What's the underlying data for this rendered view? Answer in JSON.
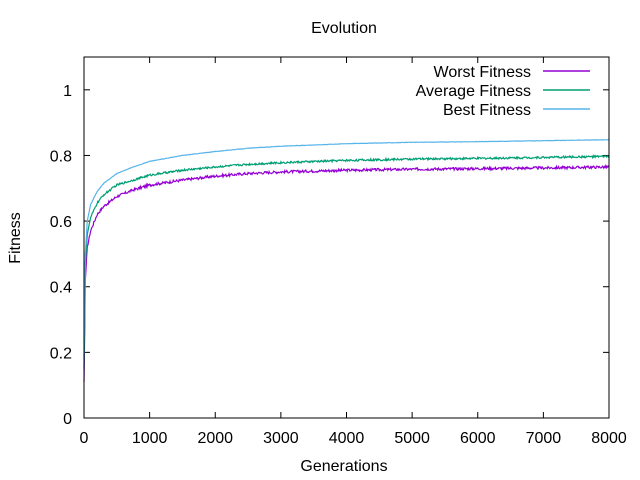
{
  "chart_data": {
    "type": "line",
    "title": "Evolution",
    "xlabel": "Generations",
    "ylabel": "Fitness",
    "xlim": [
      0,
      8000
    ],
    "ylim": [
      0,
      1.1
    ],
    "x_ticks": [
      0,
      1000,
      2000,
      3000,
      4000,
      5000,
      6000,
      7000,
      8000
    ],
    "y_ticks": [
      0,
      0.2,
      0.4,
      0.6,
      0.8,
      1
    ],
    "grid": false,
    "legend_position": "top-right",
    "x": [
      0,
      20,
      50,
      100,
      200,
      300,
      500,
      750,
      1000,
      1500,
      2000,
      2500,
      3000,
      4000,
      5000,
      6000,
      7000,
      8000
    ],
    "series": [
      {
        "name": "Worst Fitness",
        "color": "#9400d3",
        "values": [
          0.11,
          0.42,
          0.52,
          0.57,
          0.62,
          0.645,
          0.675,
          0.695,
          0.71,
          0.725,
          0.737,
          0.745,
          0.75,
          0.755,
          0.758,
          0.76,
          0.762,
          0.765
        ]
      },
      {
        "name": "Average Fitness",
        "color": "#009e73",
        "values": [
          0.15,
          0.47,
          0.56,
          0.61,
          0.655,
          0.68,
          0.71,
          0.725,
          0.74,
          0.755,
          0.765,
          0.773,
          0.778,
          0.785,
          0.789,
          0.791,
          0.794,
          0.797
        ]
      },
      {
        "name": "Best Fitness",
        "color": "#56b4e9",
        "values": [
          0.18,
          0.5,
          0.6,
          0.65,
          0.69,
          0.715,
          0.745,
          0.765,
          0.782,
          0.8,
          0.812,
          0.822,
          0.828,
          0.836,
          0.84,
          0.842,
          0.845,
          0.848
        ]
      }
    ]
  }
}
